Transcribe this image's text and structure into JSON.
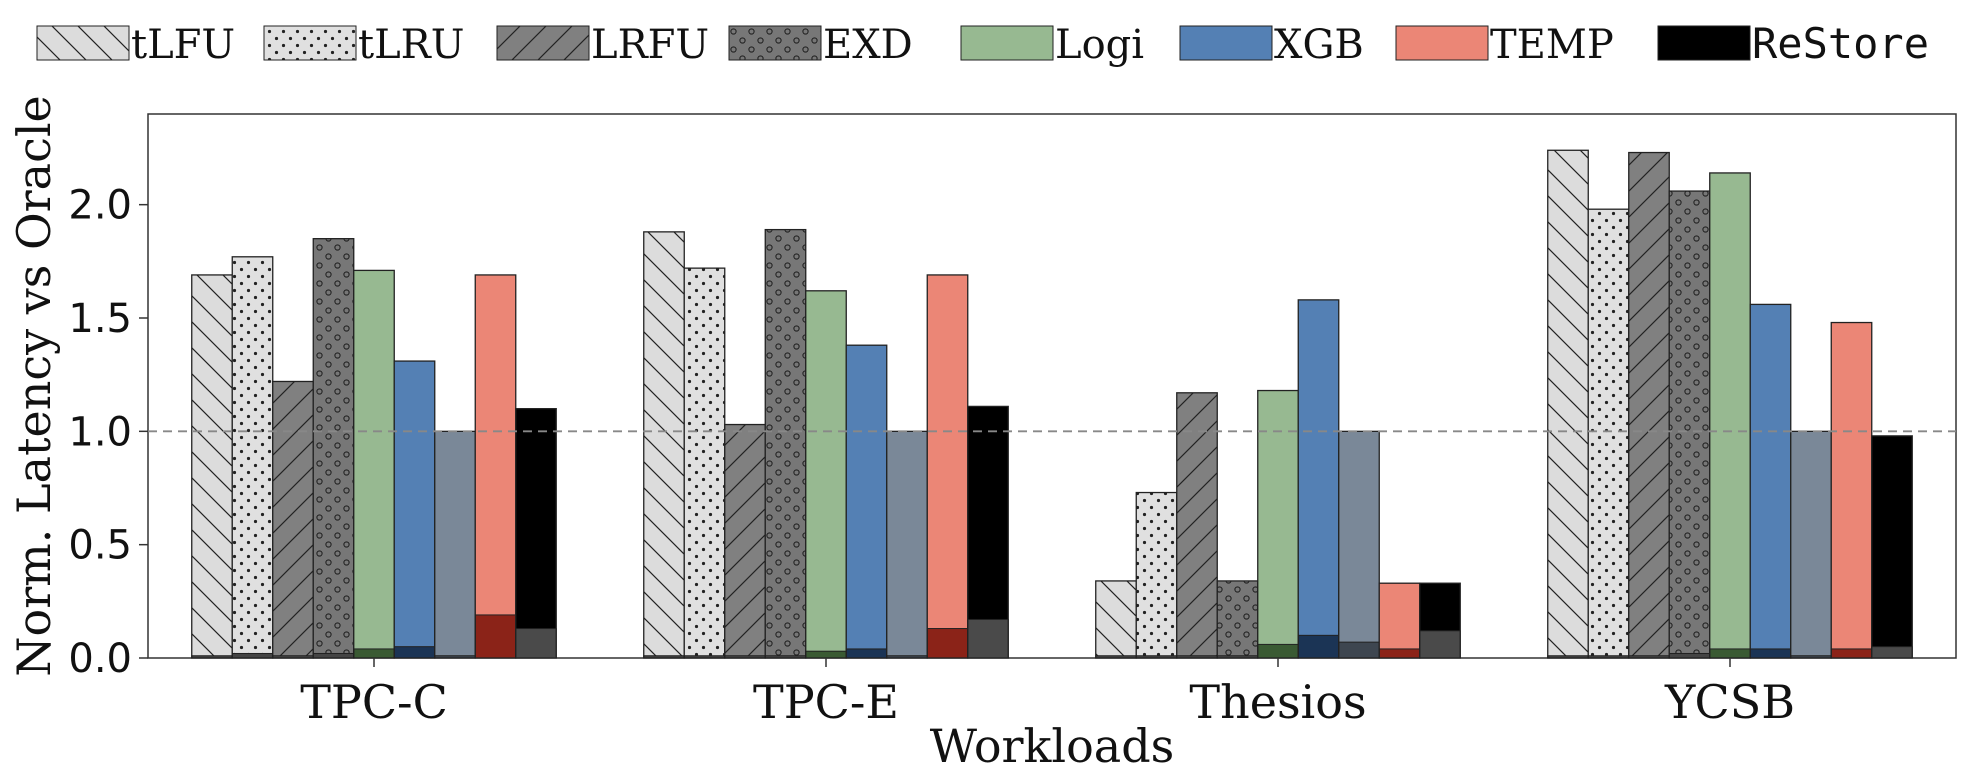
{
  "chart_data": {
    "type": "bar",
    "xlabel": "Workloads",
    "ylabel": "Norm. Latency vs Oracle",
    "ylim": [
      0,
      2.4
    ],
    "yticks": [
      "0.0",
      "0.5",
      "1.0",
      "1.5",
      "2.0"
    ],
    "reference_line": 1.0,
    "grid": false,
    "legend_position": "top",
    "categories": [
      "TPC-C",
      "TPC-E",
      "Thesios",
      "YCSB"
    ],
    "series": [
      {
        "name": "tLFU",
        "color": "#dcdcdc",
        "pattern": "backslash",
        "values": [
          1.69,
          1.88,
          0.34,
          2.24
        ],
        "inner": [
          0.01,
          0.01,
          0.01,
          0.01
        ]
      },
      {
        "name": "tLRU",
        "color": "#e0e0e0",
        "pattern": "dots",
        "values": [
          1.77,
          1.72,
          0.73,
          1.98
        ],
        "inner": [
          0.02,
          0.01,
          0.01,
          0.01
        ]
      },
      {
        "name": "LRFU",
        "color": "#808080",
        "pattern": "slash",
        "values": [
          1.22,
          1.03,
          1.17,
          2.23
        ],
        "inner": [
          0.01,
          0.01,
          0.01,
          0.01
        ]
      },
      {
        "name": "EXD",
        "color": "#777777",
        "pattern": "circles",
        "values": [
          1.85,
          1.89,
          0.34,
          2.06
        ],
        "inner": [
          0.02,
          0.01,
          0.01,
          0.02
        ]
      },
      {
        "name": "Logi",
        "color": "#97b991",
        "pattern": "none",
        "values": [
          1.71,
          1.62,
          1.18,
          2.14
        ],
        "inner": [
          0.04,
          0.03,
          0.06,
          0.04
        ],
        "inner_color": "#3a5a33"
      },
      {
        "name": "XGB",
        "color": "#5480b4",
        "pattern": "none",
        "values": [
          1.31,
          1.38,
          1.58,
          1.56
        ],
        "inner": [
          0.05,
          0.04,
          0.1,
          0.04
        ],
        "inner_color": "#1b3455"
      },
      {
        "name": "",
        "color": "#7a8898",
        "pattern": "none",
        "values": [
          1.0,
          1.0,
          1.0,
          1.0
        ],
        "inner": [
          0.01,
          0.01,
          0.07,
          0.01
        ],
        "inner_color": "#3e4650"
      },
      {
        "name": "TEMP",
        "color": "#eb8676",
        "pattern": "none",
        "values": [
          1.69,
          1.69,
          0.33,
          1.48
        ],
        "inner": [
          0.19,
          0.13,
          0.04,
          0.04
        ],
        "inner_color": "#8b2318"
      },
      {
        "name": "ReStore",
        "color": "#000000",
        "pattern": "none",
        "values": [
          1.1,
          1.11,
          0.33,
          0.98
        ],
        "inner": [
          0.13,
          0.17,
          0.12,
          0.05
        ],
        "inner_color": "#4a4a4a"
      }
    ]
  }
}
